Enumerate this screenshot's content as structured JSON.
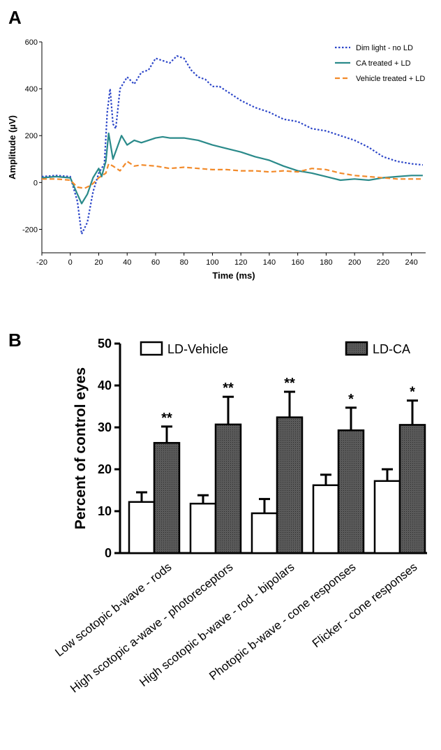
{
  "panel_a_label": "A",
  "panel_b_label": "B",
  "chart_data": [
    {
      "type": "line",
      "xlabel": "Time (ms)",
      "ylabel": "Amplitude (µV)",
      "xlim": [
        -20,
        250
      ],
      "ylim": [
        -300,
        600
      ],
      "x_ticks": [
        "-20",
        "0",
        "20",
        "40",
        "60",
        "80",
        "100",
        "120",
        "140",
        "160",
        "180",
        "200",
        "220",
        "240"
      ],
      "y_ticks": [
        "-200",
        "0",
        "200",
        "400",
        "600"
      ],
      "legend_position": "top-right",
      "series": [
        {
          "name": "Dim light - no LD",
          "color": "#2b45c8",
          "style": "dotted",
          "points": [
            [
              -20,
              25
            ],
            [
              -10,
              30
            ],
            [
              0,
              25
            ],
            [
              5,
              -80
            ],
            [
              8,
              -220
            ],
            [
              12,
              -170
            ],
            [
              16,
              -40
            ],
            [
              20,
              40
            ],
            [
              24,
              80
            ],
            [
              26,
              300
            ],
            [
              28,
              400
            ],
            [
              30,
              250
            ],
            [
              32,
              230
            ],
            [
              35,
              400
            ],
            [
              40,
              450
            ],
            [
              45,
              420
            ],
            [
              50,
              470
            ],
            [
              55,
              480
            ],
            [
              60,
              530
            ],
            [
              65,
              520
            ],
            [
              70,
              510
            ],
            [
              75,
              540
            ],
            [
              80,
              530
            ],
            [
              85,
              480
            ],
            [
              90,
              450
            ],
            [
              95,
              440
            ],
            [
              100,
              410
            ],
            [
              105,
              410
            ],
            [
              110,
              390
            ],
            [
              120,
              350
            ],
            [
              130,
              320
            ],
            [
              140,
              300
            ],
            [
              150,
              270
            ],
            [
              160,
              260
            ],
            [
              170,
              230
            ],
            [
              180,
              220
            ],
            [
              190,
              200
            ],
            [
              200,
              180
            ],
            [
              210,
              150
            ],
            [
              220,
              110
            ],
            [
              230,
              90
            ],
            [
              240,
              80
            ],
            [
              248,
              75
            ]
          ]
        },
        {
          "name": "CA treated + LD",
          "color": "#2a8a8a",
          "style": "solid",
          "points": [
            [
              -20,
              20
            ],
            [
              -10,
              25
            ],
            [
              0,
              20
            ],
            [
              5,
              -50
            ],
            [
              8,
              -90
            ],
            [
              12,
              -50
            ],
            [
              16,
              20
            ],
            [
              20,
              60
            ],
            [
              22,
              25
            ],
            [
              25,
              90
            ],
            [
              27,
              210
            ],
            [
              30,
              100
            ],
            [
              33,
              150
            ],
            [
              36,
              200
            ],
            [
              40,
              160
            ],
            [
              45,
              180
            ],
            [
              50,
              170
            ],
            [
              55,
              180
            ],
            [
              60,
              190
            ],
            [
              65,
              195
            ],
            [
              70,
              190
            ],
            [
              80,
              190
            ],
            [
              90,
              180
            ],
            [
              100,
              160
            ],
            [
              110,
              145
            ],
            [
              120,
              130
            ],
            [
              130,
              110
            ],
            [
              140,
              95
            ],
            [
              150,
              70
            ],
            [
              160,
              50
            ],
            [
              170,
              40
            ],
            [
              180,
              25
            ],
            [
              190,
              10
            ],
            [
              200,
              15
            ],
            [
              210,
              10
            ],
            [
              220,
              20
            ],
            [
              230,
              25
            ],
            [
              240,
              30
            ],
            [
              248,
              30
            ]
          ]
        },
        {
          "name": "Vehicle treated + LD",
          "color": "#f28a2a",
          "style": "dashed",
          "points": [
            [
              -20,
              15
            ],
            [
              -10,
              15
            ],
            [
              0,
              10
            ],
            [
              5,
              -20
            ],
            [
              10,
              -25
            ],
            [
              15,
              -10
            ],
            [
              20,
              20
            ],
            [
              25,
              40
            ],
            [
              27,
              80
            ],
            [
              30,
              70
            ],
            [
              35,
              50
            ],
            [
              40,
              90
            ],
            [
              45,
              70
            ],
            [
              50,
              75
            ],
            [
              60,
              70
            ],
            [
              70,
              60
            ],
            [
              80,
              65
            ],
            [
              90,
              60
            ],
            [
              100,
              55
            ],
            [
              110,
              55
            ],
            [
              120,
              50
            ],
            [
              130,
              50
            ],
            [
              140,
              45
            ],
            [
              150,
              50
            ],
            [
              160,
              45
            ],
            [
              170,
              60
            ],
            [
              180,
              55
            ],
            [
              190,
              40
            ],
            [
              200,
              30
            ],
            [
              210,
              25
            ],
            [
              220,
              20
            ],
            [
              230,
              15
            ],
            [
              240,
              15
            ],
            [
              248,
              15
            ]
          ]
        }
      ]
    },
    {
      "type": "bar",
      "ylabel": "Percent of control eyes",
      "ylim": [
        0,
        50
      ],
      "y_ticks": [
        "0",
        "10",
        "20",
        "30",
        "40",
        "50"
      ],
      "legend_position": "top",
      "categories": [
        "Low scotopic b-wave - rods",
        "High scotopic a-wave - photoreceptors",
        "High scotopic b-wave - rod - bipolars",
        "Photopic b-wave - cone responses",
        "Flicker - cone responses"
      ],
      "series": [
        {
          "name": "LD-Vehicle",
          "color": "#ffffff",
          "values": [
            12.2,
            11.8,
            9.5,
            16.2,
            17.2
          ],
          "errors": [
            2.3,
            2.0,
            3.4,
            2.5,
            2.8
          ]
        },
        {
          "name": "LD-CA",
          "color": "#555555",
          "values": [
            26.3,
            30.7,
            32.4,
            29.3,
            30.6
          ],
          "errors": [
            3.9,
            6.6,
            6.1,
            5.4,
            5.8
          ]
        }
      ],
      "annotations": [
        "**",
        "**",
        "**",
        "*",
        "*"
      ]
    }
  ]
}
